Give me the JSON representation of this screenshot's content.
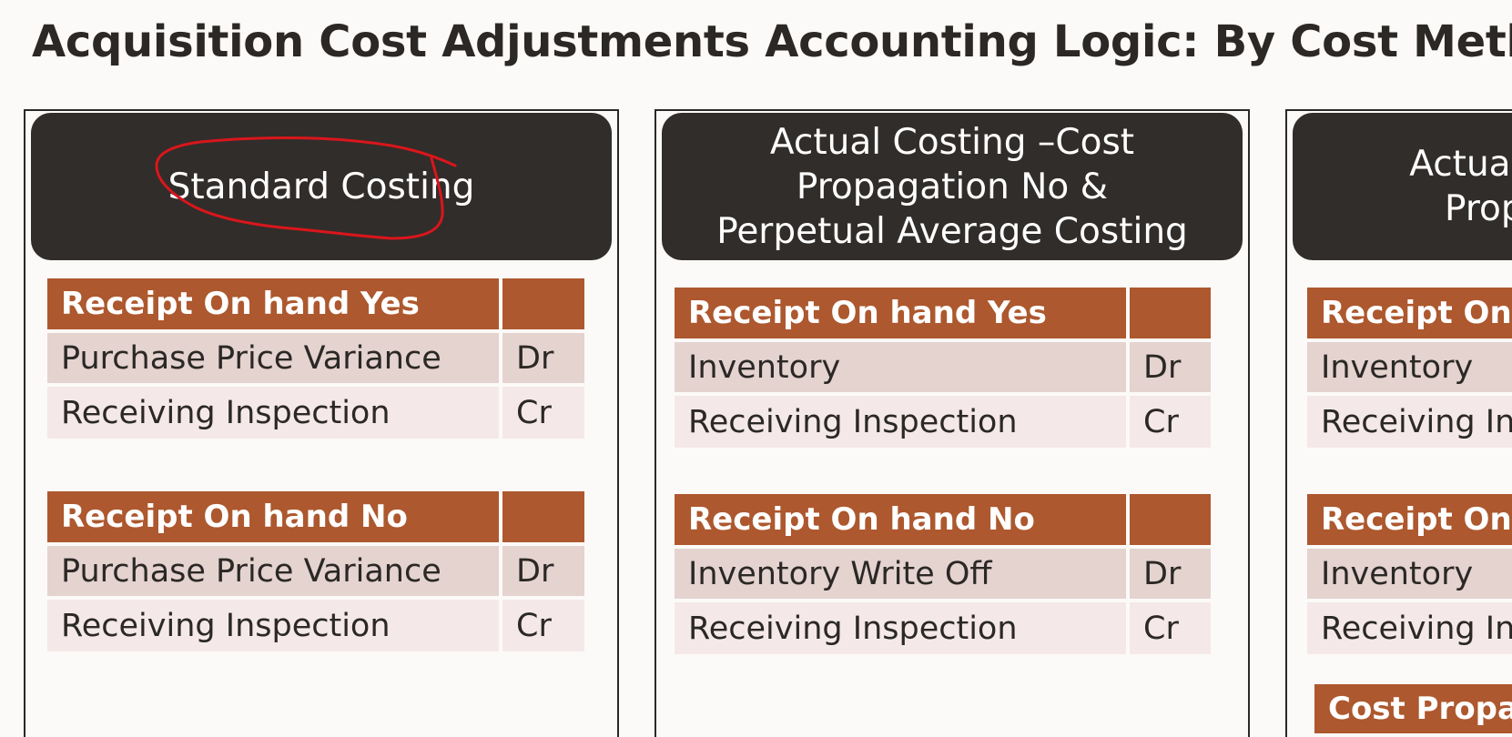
{
  "title": "Acquisition Cost Adjustments Accounting Logic: By Cost Meth",
  "panels": [
    {
      "header": [
        "Standard Costing"
      ],
      "tables": [
        {
          "heading": "Receipt On hand Yes",
          "rows": [
            {
              "account": "Purchase Price Variance",
              "side": "Dr"
            },
            {
              "account": "Receiving Inspection",
              "side": "Cr"
            }
          ]
        },
        {
          "heading": "Receipt On hand No",
          "rows": [
            {
              "account": "Purchase Price Variance",
              "side": "Dr"
            },
            {
              "account": "Receiving Inspection",
              "side": "Cr"
            }
          ]
        }
      ]
    },
    {
      "header": [
        "Actual Costing –Cost",
        "Propagation No &",
        "Perpetual Average Costing"
      ],
      "tables": [
        {
          "heading": "Receipt On hand Yes",
          "rows": [
            {
              "account": "Inventory",
              "side": "Dr"
            },
            {
              "account": "Receiving Inspection",
              "side": "Cr"
            }
          ]
        },
        {
          "heading": "Receipt On hand No",
          "rows": [
            {
              "account": "Inventory Write Off",
              "side": "Dr"
            },
            {
              "account": "Receiving Inspection",
              "side": "Cr"
            }
          ]
        }
      ]
    },
    {
      "header": [
        "Actual",
        "Prop"
      ],
      "tables": [
        {
          "heading": "Receipt On h",
          "rows": [
            {
              "account": "Inventory",
              "side": ""
            },
            {
              "account": "Receiving Ins",
              "side": ""
            }
          ]
        },
        {
          "heading": "Receipt On h",
          "rows": [
            {
              "account": "Inventory",
              "side": ""
            },
            {
              "account": "Receiving Ins",
              "side": ""
            }
          ]
        }
      ],
      "extra_heading": "Cost Propag"
    }
  ],
  "colors": {
    "header_bg": "#312d2a",
    "table_head": "#ad582e",
    "row_dark": "#e4d3cf",
    "row_light": "#f4e9e8",
    "annotation": "#d9161c"
  }
}
